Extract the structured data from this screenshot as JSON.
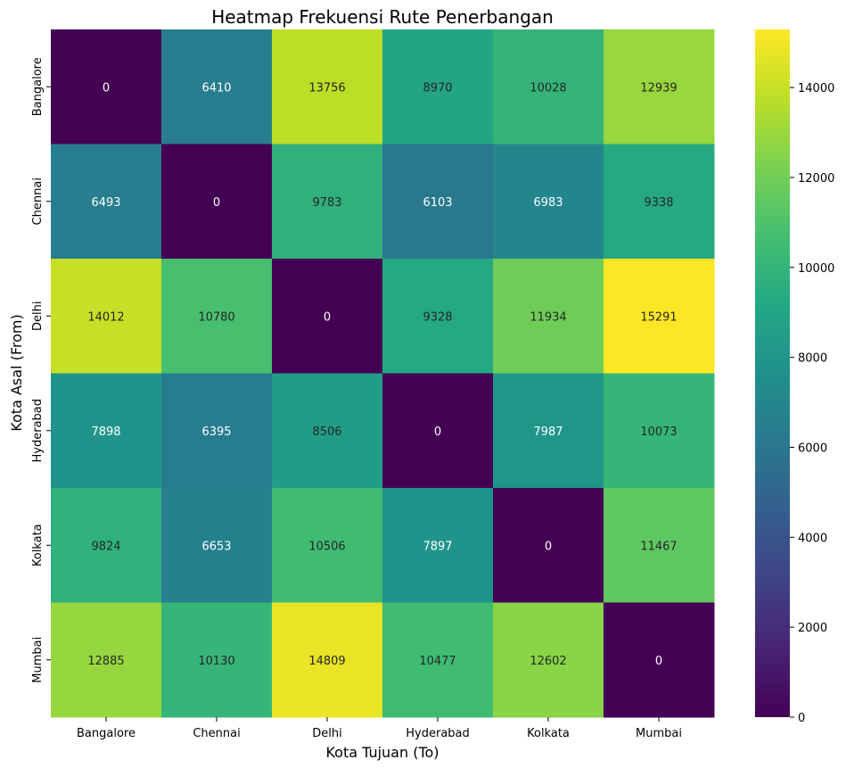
{
  "chart_data": {
    "type": "heatmap",
    "title": "Heatmap Frekuensi Rute Penerbangan",
    "xlabel": "Kota Tujuan (To)",
    "ylabel": "Kota Asal (From)",
    "x_categories": [
      "Bangalore",
      "Chennai",
      "Delhi",
      "Hyderabad",
      "Kolkata",
      "Mumbai"
    ],
    "y_categories": [
      "Bangalore",
      "Chennai",
      "Delhi",
      "Hyderabad",
      "Kolkata",
      "Mumbai"
    ],
    "values": [
      [
        0,
        6410,
        13756,
        8970,
        10028,
        12939
      ],
      [
        6493,
        0,
        9783,
        6103,
        6983,
        9338
      ],
      [
        14012,
        10780,
        0,
        9328,
        11934,
        15291
      ],
      [
        7898,
        6395,
        8506,
        0,
        7987,
        10073
      ],
      [
        9824,
        6653,
        10506,
        7897,
        0,
        11467
      ],
      [
        12885,
        10130,
        14809,
        10477,
        12602,
        0
      ]
    ],
    "colormap": "viridis",
    "vmin": 0,
    "vmax": 15291,
    "colorbar_ticks": [
      0,
      2000,
      4000,
      6000,
      8000,
      10000,
      12000,
      14000
    ],
    "grid": false,
    "legend": "colorbar-right"
  }
}
